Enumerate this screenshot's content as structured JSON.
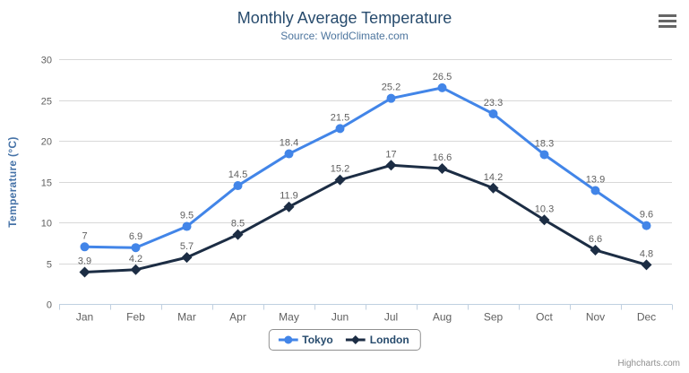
{
  "header": {
    "title": "Monthly Average Temperature",
    "subtitle": "Source: WorldClimate.com",
    "context_menu_icon": "hamburger-icon"
  },
  "credits": {
    "label": "Highcharts.com"
  },
  "chart_data": {
    "type": "line",
    "title": "Monthly Average Temperature",
    "subtitle": "Source: WorldClimate.com",
    "categories": [
      "Jan",
      "Feb",
      "Mar",
      "Apr",
      "May",
      "Jun",
      "Jul",
      "Aug",
      "Sep",
      "Oct",
      "Nov",
      "Dec"
    ],
    "series": [
      {
        "name": "Tokyo",
        "marker": "circle",
        "color": "#4285e8",
        "values": [
          7,
          6.9,
          9.5,
          14.5,
          18.4,
          21.5,
          25.2,
          26.5,
          23.3,
          18.3,
          13.9,
          9.6
        ]
      },
      {
        "name": "London",
        "marker": "diamond",
        "color": "#1c2d44",
        "values": [
          3.9,
          4.2,
          5.7,
          8.5,
          11.9,
          15.2,
          17,
          16.6,
          14.2,
          10.3,
          6.6,
          4.8
        ]
      }
    ],
    "xlabel": "",
    "ylabel": "Temperature (°C)",
    "ylim": [
      0,
      30
    ],
    "ytick_step": 5,
    "yticks": [
      0,
      5,
      10,
      15,
      20,
      25,
      30
    ],
    "grid": true,
    "legend_position": "bottom-center",
    "data_labels": true,
    "colors": {
      "title": "#274b6d",
      "subtitle": "#4d759e",
      "axis_title": "#4572a7",
      "tick_label": "#606060",
      "data_label": "#606060",
      "gridline": "#d8d8d8",
      "axis_line": "#c0d0e0",
      "legend_text": "#274b6d",
      "credits_text": "#909090",
      "background": "#ffffff"
    }
  }
}
